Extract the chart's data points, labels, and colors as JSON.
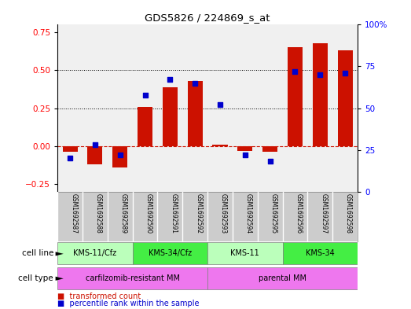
{
  "title": "GDS5826 / 224869_s_at",
  "samples": [
    "GSM1692587",
    "GSM1692588",
    "GSM1692589",
    "GSM1692590",
    "GSM1692591",
    "GSM1692592",
    "GSM1692593",
    "GSM1692594",
    "GSM1692595",
    "GSM1692596",
    "GSM1692597",
    "GSM1692598"
  ],
  "transformed_count": [
    -0.04,
    -0.12,
    -0.14,
    0.26,
    0.39,
    0.43,
    0.01,
    -0.03,
    -0.04,
    0.65,
    0.68,
    0.63
  ],
  "percentile_rank": [
    20,
    28,
    22,
    58,
    67,
    65,
    52,
    22,
    18,
    72,
    70,
    71
  ],
  "cell_line_groups": [
    {
      "label": "KMS-11/Cfz",
      "start": 0,
      "end": 3,
      "color": "#bbffbb"
    },
    {
      "label": "KMS-34/Cfz",
      "start": 3,
      "end": 6,
      "color": "#44ee44"
    },
    {
      "label": "KMS-11",
      "start": 6,
      "end": 9,
      "color": "#bbffbb"
    },
    {
      "label": "KMS-34",
      "start": 9,
      "end": 12,
      "color": "#44ee44"
    }
  ],
  "cell_type_groups": [
    {
      "label": "carfilzomib-resistant MM",
      "start": 0,
      "end": 6,
      "color": "#ee77ee"
    },
    {
      "label": "parental MM",
      "start": 6,
      "end": 12,
      "color": "#ee77ee"
    }
  ],
  "bar_color": "#cc1100",
  "dot_color": "#0000cc",
  "zero_line_color": "#cc1100",
  "grid_color": "#000000",
  "ylim_left": [
    -0.3,
    0.8
  ],
  "ylim_right": [
    0,
    100
  ],
  "yticks_left": [
    -0.25,
    0.0,
    0.25,
    0.5,
    0.75
  ],
  "yticks_right": [
    0,
    25,
    50,
    75,
    100
  ],
  "bg_color": "#f0f0f0",
  "sample_bg": "#cccccc"
}
